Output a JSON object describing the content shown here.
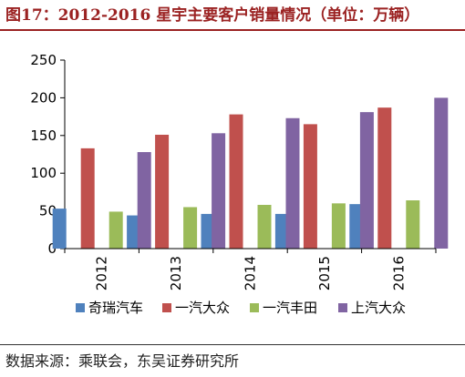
{
  "figure": {
    "title": "图17：2012-2016 星宇主要客户销量情况（单位：万辆）",
    "source": "数据来源：乘联会，东吴证券研究所"
  },
  "chart_data": {
    "type": "bar",
    "categories": [
      "2012",
      "2013",
      "2014",
      "2015",
      "2016"
    ],
    "series": [
      {
        "name": "奇瑞汽车",
        "color": "#4f81bd",
        "values": [
          53,
          44,
          46,
          46,
          59
        ]
      },
      {
        "name": "一汽大众",
        "color": "#c0504d",
        "values": [
          133,
          151,
          178,
          165,
          187
        ]
      },
      {
        "name": "一汽丰田",
        "color": "#9bbb59",
        "values": [
          49,
          55,
          58,
          60,
          64
        ]
      },
      {
        "name": "上汽大众",
        "color": "#8064a2",
        "values": [
          128,
          153,
          173,
          181,
          200
        ]
      }
    ],
    "yticks": [
      0,
      50,
      100,
      150,
      200,
      250
    ],
    "ylim": [
      0,
      250
    ],
    "legend_position": "bottom",
    "grid": false,
    "title": "",
    "xlabel": "",
    "ylabel": ""
  }
}
